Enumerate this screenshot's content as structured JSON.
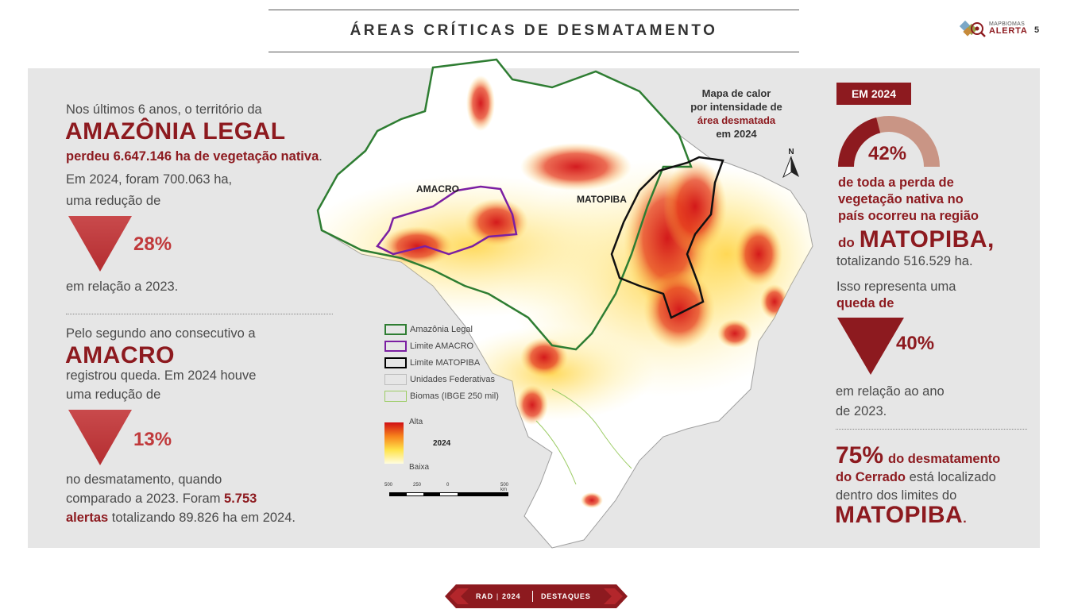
{
  "header": {
    "title": "ÁREAS CRÍTICAS DE DESMATAMENTO",
    "brand_top": "MAPBIOMAS",
    "brand_bottom": "ALERTA",
    "page_number": "5"
  },
  "left": {
    "amazonia": {
      "intro": "Nos últimos 6 anos, o território da",
      "name": "AMAZÔNIA LEGAL",
      "loss": "perdeu 6.647.146 ha de vegetação nativa",
      "loss_suffix": ".",
      "line1": "Em 2024, foram 700.063 ha,",
      "line2": "uma redução de",
      "percent": "28%",
      "after": "em relação a 2023."
    },
    "amacro": {
      "intro": "Pelo segundo ano consecutivo a",
      "name": "AMACRO",
      "line1": "registrou queda. Em 2024 houve",
      "line2": "uma redução de",
      "percent": "13%",
      "after1": "no desmatamento, quando",
      "after2_pre": "comparado a 2023. Foram ",
      "after2_red": "5.753",
      "after3_red": "alertas",
      "after3_post": " totalizando 89.826 ha em 2024."
    }
  },
  "map": {
    "caption_l1": "Mapa de calor",
    "caption_l2": "por intensidade de",
    "caption_l3": "área desmatada",
    "caption_l4": "em 2024",
    "north": "N",
    "label_amacro": "AMACRO",
    "label_matopiba": "MATOPIBA",
    "legend": [
      {
        "label": "Amazônia Legal",
        "color": "#2e7d32"
      },
      {
        "label": "Limite AMACRO",
        "color": "#7b1fa2"
      },
      {
        "label": "Limite MATOPIBA",
        "color": "#000000"
      },
      {
        "label": "Unidades Federativas",
        "color": "#bdbdbd"
      },
      {
        "label": "Biomas (IBGE 250 mil)",
        "color": "#9ccc65"
      }
    ],
    "heat_high": "Alta",
    "heat_year": "2024",
    "heat_low": "Baixa",
    "scale_labels": [
      "500",
      "250",
      "0",
      "500 km"
    ]
  },
  "right": {
    "badge": "EM 2024",
    "donut_percent": "42%",
    "donut_value": 0.42,
    "desc1": "de toda a perda de",
    "desc2": "vegetação nativa no",
    "desc3": "país ocorreu na região",
    "desc4_pre": "do",
    "desc4_big": "MATOPIBA,",
    "total": "totalizando 516.529 ha.",
    "line1": "Isso representa uma",
    "line2": "queda de",
    "percent": "40%",
    "after1": "em relação ao ano",
    "after2": "de 2023.",
    "cerrado_pct": "75%",
    "cerrado1": "do desmatamento",
    "cerrado2_red": "do Cerrado",
    "cerrado2_post": " está localizado",
    "cerrado3": "dentro dos limites do",
    "cerrado4": "MATOPIBA",
    "cerrado4_dot": "."
  },
  "footer": {
    "rad": "RAD",
    "year": "2024",
    "section": "DESTAQUES"
  }
}
